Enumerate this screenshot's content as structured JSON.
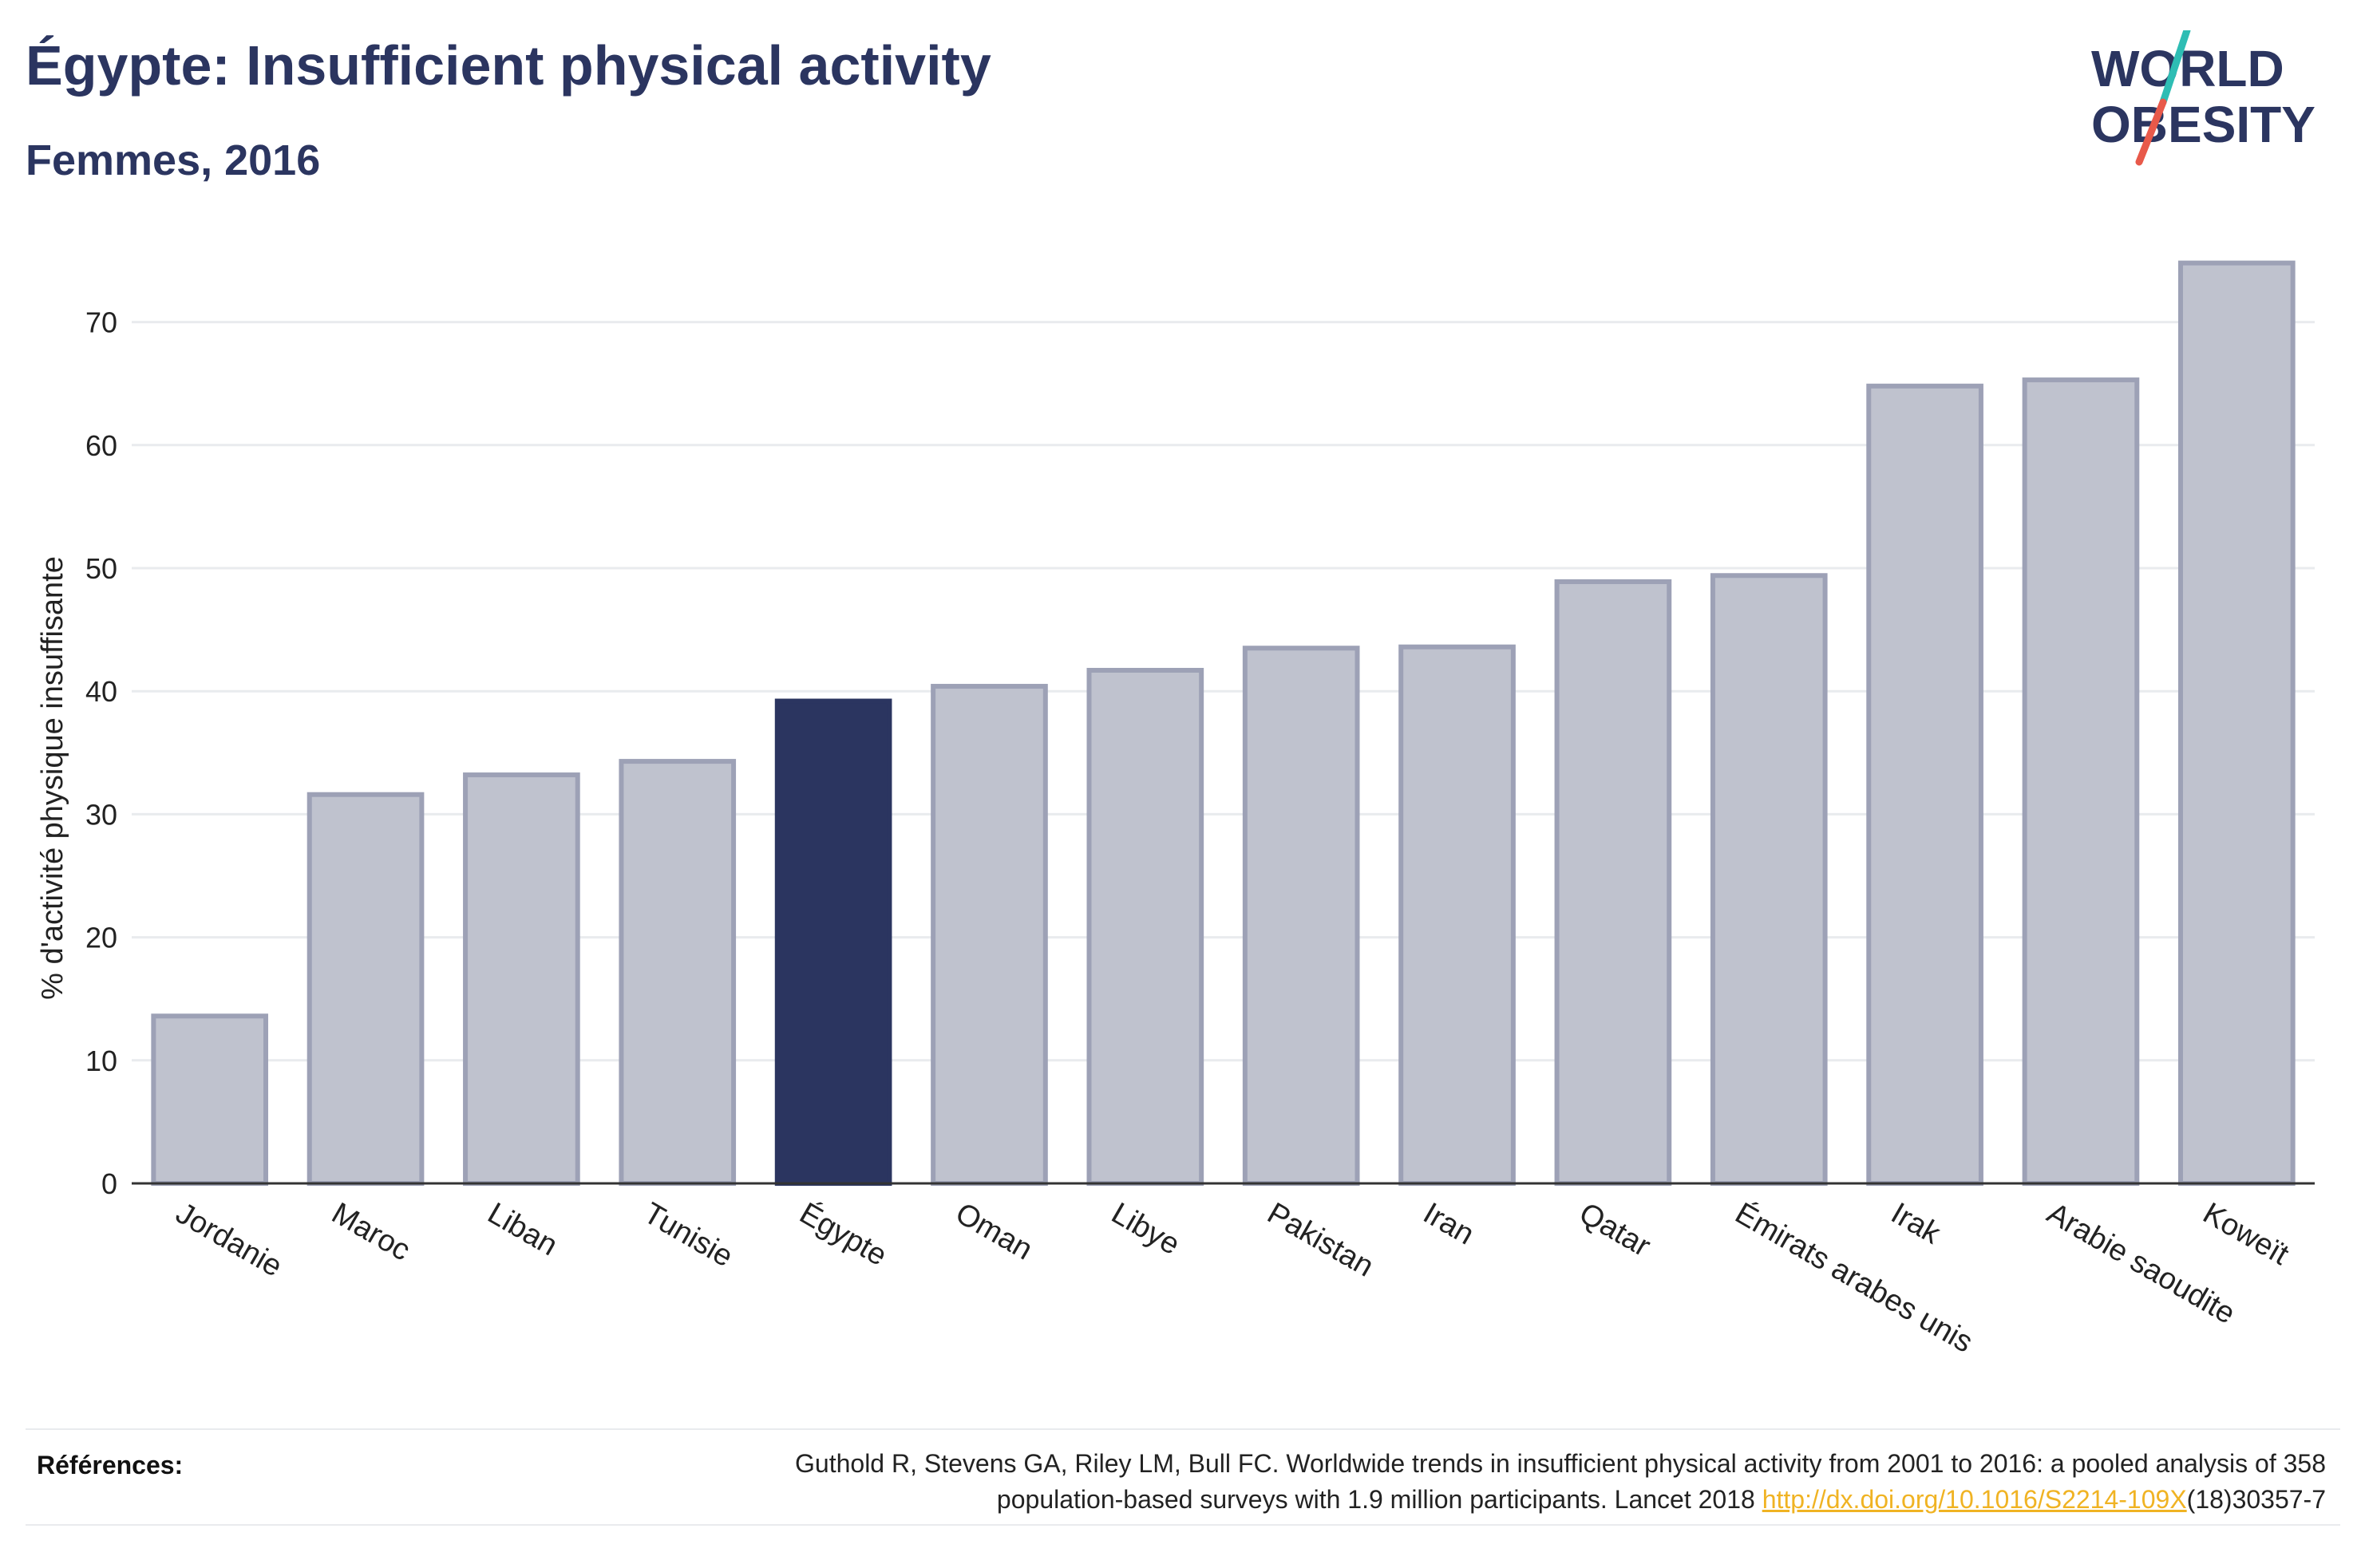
{
  "header": {
    "title": "Égypte: Insufficient physical activity",
    "subtitle": "Femmes, 2016"
  },
  "logo": {
    "line1": "WORLD",
    "line2": "OBESITY",
    "accent_colors": [
      "#2ebdb4",
      "#e8594a"
    ]
  },
  "chart_data": {
    "type": "bar",
    "title": "Égypte: Insufficient physical activity",
    "subtitle": "Femmes, 2016",
    "xlabel": "",
    "ylabel": "% d'activité physique insuffisante",
    "categories": [
      "Jordanie",
      "Maroc",
      "Liban",
      "Tunisie",
      "Égypte",
      "Oman",
      "Libye",
      "Pakistan",
      "Iran",
      "Qatar",
      "Émirats arabes unis",
      "Irak",
      "Arabie saoudite",
      "Koweït"
    ],
    "values": [
      13.6,
      31.6,
      33.2,
      34.3,
      39.2,
      40.4,
      41.7,
      43.5,
      43.6,
      48.9,
      49.4,
      64.8,
      65.3,
      74.8
    ],
    "highlight": "Égypte",
    "ylim": [
      0,
      78
    ],
    "yticks": [
      0,
      10,
      20,
      30,
      40,
      50,
      60,
      70
    ],
    "grid": true,
    "colors": {
      "bar": "#bfc2ce",
      "bar_edge": "#9da1b6",
      "highlight": "#2b3560",
      "grid": "#e9ebee",
      "axis": "#333333"
    }
  },
  "references": {
    "label": "Références:",
    "text_line1": "Guthold R, Stevens GA, Riley LM, Bull FC. Worldwide trends in insufficient physical activity from 2001 to 2016: a pooled analysis of 358",
    "text_line2_pre": "population-based surveys with 1.9 million participants. Lancet 2018 ",
    "link_text": "http://dx.doi.org/10.1016/S2214-109X",
    "text_line2_post": "(18)30357-7"
  }
}
